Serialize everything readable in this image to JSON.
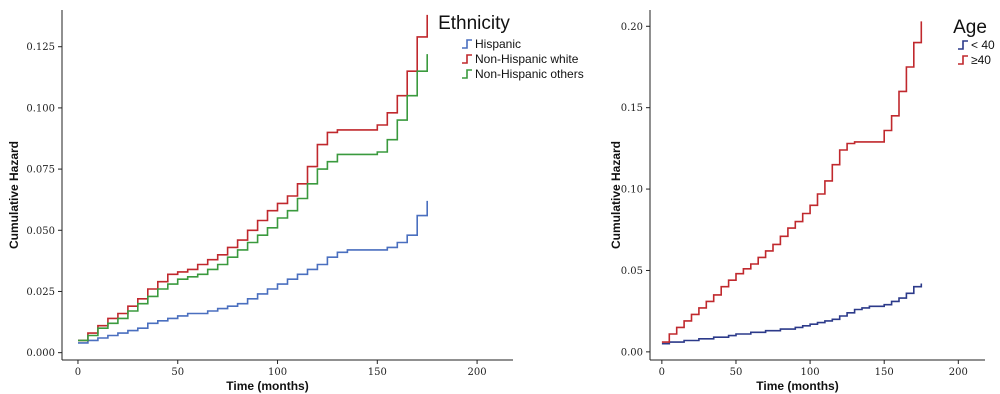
{
  "chart_data": [
    {
      "type": "line",
      "step": true,
      "xlabel": "Time (months)",
      "ylabel": "Cumulative Hazard",
      "xlim": [
        -8,
        218
      ],
      "ylim": [
        -0.003,
        0.14
      ],
      "xticks": [
        "0",
        "50",
        "100",
        "150",
        "200"
      ],
      "yticks": [
        "0.000",
        "0.025",
        "0.050",
        "0.075",
        "0.100",
        "0.125"
      ],
      "grid": false,
      "legend_title": "Ethnicity",
      "legend_position": "top-right",
      "series": [
        {
          "name": "Hispanic",
          "color": "#4a6fbf",
          "x": [
            0,
            5,
            10,
            15,
            20,
            25,
            30,
            35,
            40,
            45,
            50,
            55,
            60,
            65,
            70,
            75,
            80,
            85,
            90,
            95,
            100,
            105,
            110,
            115,
            120,
            125,
            130,
            135,
            140,
            145,
            150,
            155,
            160,
            165,
            170,
            175
          ],
          "y": [
            0.004,
            0.005,
            0.006,
            0.007,
            0.008,
            0.009,
            0.01,
            0.012,
            0.013,
            0.014,
            0.015,
            0.016,
            0.016,
            0.017,
            0.018,
            0.019,
            0.02,
            0.022,
            0.024,
            0.026,
            0.028,
            0.03,
            0.032,
            0.034,
            0.036,
            0.039,
            0.041,
            0.042,
            0.042,
            0.042,
            0.042,
            0.043,
            0.045,
            0.048,
            0.056,
            0.062
          ]
        },
        {
          "name": "Non-Hispanic white",
          "color": "#c0282d",
          "x": [
            0,
            5,
            10,
            15,
            20,
            25,
            30,
            35,
            40,
            45,
            50,
            55,
            60,
            65,
            70,
            75,
            80,
            85,
            90,
            95,
            100,
            105,
            110,
            115,
            120,
            125,
            130,
            135,
            140,
            145,
            150,
            155,
            160,
            165,
            170,
            175
          ],
          "y": [
            0.005,
            0.008,
            0.011,
            0.014,
            0.016,
            0.019,
            0.022,
            0.026,
            0.029,
            0.032,
            0.033,
            0.034,
            0.036,
            0.038,
            0.04,
            0.043,
            0.046,
            0.05,
            0.054,
            0.058,
            0.061,
            0.064,
            0.069,
            0.076,
            0.085,
            0.09,
            0.091,
            0.091,
            0.091,
            0.091,
            0.093,
            0.098,
            0.105,
            0.115,
            0.129,
            0.138
          ]
        },
        {
          "name": "Non-Hispanic others",
          "color": "#3a9a3e",
          "x": [
            0,
            5,
            10,
            15,
            20,
            25,
            30,
            35,
            40,
            45,
            50,
            55,
            60,
            65,
            70,
            75,
            80,
            85,
            90,
            95,
            100,
            105,
            110,
            115,
            120,
            125,
            130,
            135,
            140,
            145,
            150,
            155,
            160,
            165,
            170,
            175
          ],
          "y": [
            0.005,
            0.007,
            0.01,
            0.012,
            0.014,
            0.017,
            0.02,
            0.023,
            0.026,
            0.028,
            0.03,
            0.031,
            0.032,
            0.034,
            0.036,
            0.039,
            0.042,
            0.045,
            0.048,
            0.051,
            0.055,
            0.058,
            0.063,
            0.069,
            0.075,
            0.078,
            0.081,
            0.081,
            0.081,
            0.081,
            0.082,
            0.087,
            0.095,
            0.105,
            0.115,
            0.122
          ]
        }
      ]
    },
    {
      "type": "line",
      "step": true,
      "xlabel": "Time (months)",
      "ylabel": "Cumulative Hazard",
      "xlim": [
        -8,
        218
      ],
      "ylim": [
        -0.005,
        0.21
      ],
      "xticks": [
        "0",
        "50",
        "100",
        "150",
        "200"
      ],
      "yticks": [
        "0.00",
        "0.05",
        "0.10",
        "0.15",
        "0.20"
      ],
      "grid": false,
      "legend_title": "Age",
      "legend_position": "top-right",
      "series": [
        {
          "name": "< 40",
          "color": "#2c3a8a",
          "x": [
            0,
            5,
            10,
            15,
            20,
            25,
            30,
            35,
            40,
            45,
            50,
            55,
            60,
            65,
            70,
            75,
            80,
            85,
            90,
            95,
            100,
            105,
            110,
            115,
            120,
            125,
            130,
            135,
            140,
            145,
            150,
            155,
            160,
            165,
            170,
            175
          ],
          "y": [
            0.005,
            0.006,
            0.006,
            0.007,
            0.007,
            0.008,
            0.008,
            0.009,
            0.009,
            0.01,
            0.011,
            0.011,
            0.012,
            0.012,
            0.013,
            0.013,
            0.014,
            0.014,
            0.015,
            0.016,
            0.017,
            0.018,
            0.019,
            0.02,
            0.022,
            0.024,
            0.026,
            0.027,
            0.028,
            0.028,
            0.029,
            0.031,
            0.033,
            0.036,
            0.04,
            0.042
          ]
        },
        {
          "name": "≥40",
          "color": "#c0282d",
          "x": [
            0,
            5,
            10,
            15,
            20,
            25,
            30,
            35,
            40,
            45,
            50,
            55,
            60,
            65,
            70,
            75,
            80,
            85,
            90,
            95,
            100,
            105,
            110,
            115,
            120,
            125,
            130,
            135,
            140,
            145,
            150,
            155,
            160,
            165,
            170,
            175
          ],
          "y": [
            0.006,
            0.011,
            0.015,
            0.019,
            0.023,
            0.027,
            0.031,
            0.035,
            0.04,
            0.044,
            0.048,
            0.051,
            0.054,
            0.058,
            0.062,
            0.066,
            0.071,
            0.076,
            0.08,
            0.085,
            0.09,
            0.097,
            0.105,
            0.115,
            0.124,
            0.128,
            0.129,
            0.129,
            0.129,
            0.129,
            0.136,
            0.145,
            0.16,
            0.175,
            0.19,
            0.203
          ]
        }
      ]
    }
  ]
}
